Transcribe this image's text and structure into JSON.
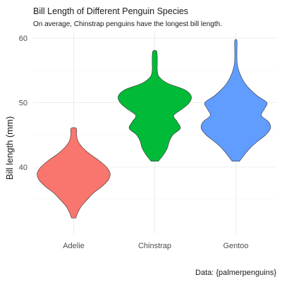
{
  "chart_data": {
    "type": "violin",
    "title": "Bill Length of Different Penguin Species",
    "subtitle": "On average, Chinstrap penguins have the longest bill length.",
    "caption": "Data: {palmerpenguins}",
    "xlabel": "",
    "ylabel": "Bill length (mm)",
    "ylim": [
      29.6,
      61.0
    ],
    "yticks": [
      40,
      50,
      60
    ],
    "grid": true,
    "legend": "none",
    "categories": [
      "Adelie",
      "Chinstrap",
      "Gentoo"
    ],
    "series": [
      {
        "category": "Adelie",
        "color": "#F8766D",
        "range": [
          32.1,
          46.0
        ],
        "profile": [
          [
            32.1,
            0.06
          ],
          [
            33,
            0.12
          ],
          [
            34,
            0.22
          ],
          [
            35,
            0.38
          ],
          [
            36,
            0.55
          ],
          [
            37,
            0.78
          ],
          [
            38,
            0.95
          ],
          [
            39,
            1.0
          ],
          [
            40,
            0.9
          ],
          [
            41,
            0.7
          ],
          [
            42,
            0.45
          ],
          [
            43,
            0.25
          ],
          [
            44,
            0.12
          ],
          [
            45,
            0.08
          ],
          [
            46,
            0.07
          ]
        ]
      },
      {
        "category": "Chinstrap",
        "color": "#00BA38",
        "range": [
          40.9,
          58.0
        ],
        "profile": [
          [
            40.9,
            0.1
          ],
          [
            42,
            0.25
          ],
          [
            43,
            0.35
          ],
          [
            44,
            0.4
          ],
          [
            45,
            0.5
          ],
          [
            46,
            0.7
          ],
          [
            47,
            0.62
          ],
          [
            48,
            0.52
          ],
          [
            49,
            0.75
          ],
          [
            50,
            0.95
          ],
          [
            51,
            1.0
          ],
          [
            52,
            0.82
          ],
          [
            53,
            0.35
          ],
          [
            54,
            0.12
          ],
          [
            55,
            0.07
          ],
          [
            56,
            0.07
          ],
          [
            57,
            0.07
          ],
          [
            58,
            0.05
          ]
        ]
      },
      {
        "category": "Gentoo",
        "color": "#619CFF",
        "range": [
          40.9,
          59.6
        ],
        "profile": [
          [
            40.9,
            0.1
          ],
          [
            42,
            0.25
          ],
          [
            43,
            0.4
          ],
          [
            44,
            0.6
          ],
          [
            45,
            0.82
          ],
          [
            46,
            0.95
          ],
          [
            47,
            0.9
          ],
          [
            48,
            0.7
          ],
          [
            49,
            0.78
          ],
          [
            50,
            0.85
          ],
          [
            51,
            0.6
          ],
          [
            52,
            0.4
          ],
          [
            53,
            0.25
          ],
          [
            54,
            0.15
          ],
          [
            55,
            0.08
          ],
          [
            56,
            0.04
          ],
          [
            57,
            0.03
          ],
          [
            58,
            0.03
          ],
          [
            59.6,
            0.03
          ]
        ]
      }
    ]
  }
}
